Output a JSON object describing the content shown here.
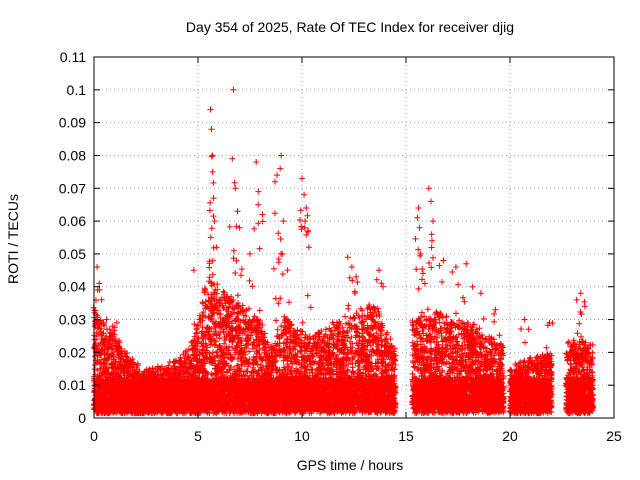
{
  "chart_data": {
    "type": "scatter",
    "title": "Day 354 of 2025, Rate Of TEC Index for receiver djig",
    "xlabel": "GPS time / hours",
    "ylabel": "ROTI / TECUs",
    "xlim": [
      0,
      25
    ],
    "ylim": [
      0,
      0.11
    ],
    "x_ticks": [
      "0",
      "5",
      "10",
      "15",
      "20",
      "25"
    ],
    "y_ticks": [
      "0",
      "0.01",
      "0.02",
      "0.03",
      "0.04",
      "0.05",
      "0.06",
      "0.07",
      "0.08",
      "0.09",
      "0.1",
      "0.11"
    ],
    "grid": true,
    "marker": "plus",
    "color": "#ff0000",
    "series": [
      {
        "name": "ROTI",
        "envelope": {
          "description": "upper envelope of dense point cloud (hour, ROTI)",
          "segments": [
            {
              "x_start": 0.0,
              "x_end": 2.2,
              "upper": [
                [
                  0.0,
                  0.035
                ],
                [
                  0.2,
                  0.03
                ],
                [
                  1.0,
                  0.025
                ],
                [
                  2.2,
                  0.015
                ]
              ]
            },
            {
              "x_start": 2.2,
              "x_end": 5.0,
              "upper": [
                [
                  2.2,
                  0.014
                ],
                [
                  3.5,
                  0.016
                ],
                [
                  4.5,
                  0.02
                ],
                [
                  5.0,
                  0.028
                ]
              ]
            },
            {
              "x_start": 5.0,
              "x_end": 8.5,
              "upper": [
                [
                  5.0,
                  0.03
                ],
                [
                  5.5,
                  0.045
                ],
                [
                  6.0,
                  0.04
                ],
                [
                  7.0,
                  0.035
                ],
                [
                  8.0,
                  0.03
                ],
                [
                  8.5,
                  0.02
                ]
              ]
            },
            {
              "x_start": 8.5,
              "x_end": 10.3,
              "upper": [
                [
                  8.5,
                  0.022
                ],
                [
                  9.2,
                  0.03
                ],
                [
                  10.3,
                  0.025
                ]
              ]
            },
            {
              "x_start": 10.3,
              "x_end": 14.5,
              "upper": [
                [
                  10.3,
                  0.025
                ],
                [
                  12.0,
                  0.03
                ],
                [
                  13.5,
                  0.035
                ],
                [
                  14.5,
                  0.02
                ]
              ]
            },
            {
              "x_start": 15.3,
              "x_end": 19.7,
              "upper": [
                [
                  15.3,
                  0.03
                ],
                [
                  16.5,
                  0.032
                ],
                [
                  18.0,
                  0.028
                ],
                [
                  19.7,
                  0.022
                ]
              ]
            },
            {
              "x_start": 20.0,
              "x_end": 22.0,
              "upper": [
                [
                  20.0,
                  0.015
                ],
                [
                  21.0,
                  0.018
                ],
                [
                  22.0,
                  0.02
                ]
              ]
            },
            {
              "x_start": 22.7,
              "x_end": 24.0,
              "upper": [
                [
                  22.7,
                  0.022
                ],
                [
                  23.3,
                  0.025
                ],
                [
                  24.0,
                  0.022
                ]
              ]
            }
          ],
          "floor": 0.004
        },
        "outliers": [
          [
            0.15,
            0.046
          ],
          [
            0.18,
            0.039
          ],
          [
            0.25,
            0.041
          ],
          [
            0.6,
            0.03
          ],
          [
            0.9,
            0.028
          ],
          [
            1.1,
            0.029
          ],
          [
            4.8,
            0.045
          ],
          [
            5.6,
            0.094
          ],
          [
            5.65,
            0.088
          ],
          [
            5.7,
            0.08
          ],
          [
            5.7,
            0.075
          ],
          [
            5.75,
            0.067
          ],
          [
            5.8,
            0.06
          ],
          [
            5.9,
            0.052
          ],
          [
            6.7,
            0.1
          ],
          [
            6.65,
            0.079
          ],
          [
            6.8,
            0.07
          ],
          [
            6.9,
            0.063
          ],
          [
            7.0,
            0.058
          ],
          [
            7.5,
            0.05
          ],
          [
            7.8,
            0.078
          ],
          [
            7.9,
            0.069
          ],
          [
            8.1,
            0.062
          ],
          [
            8.7,
            0.072
          ],
          [
            8.8,
            0.074
          ],
          [
            9.0,
            0.08
          ],
          [
            8.95,
            0.076
          ],
          [
            9.1,
            0.06
          ],
          [
            9.3,
            0.045
          ],
          [
            10.0,
            0.073
          ],
          [
            10.1,
            0.068
          ],
          [
            10.2,
            0.064
          ],
          [
            10.3,
            0.057
          ],
          [
            10.15,
            0.06
          ],
          [
            12.2,
            0.049
          ],
          [
            12.4,
            0.046
          ],
          [
            12.6,
            0.043
          ],
          [
            13.7,
            0.045
          ],
          [
            13.9,
            0.04
          ],
          [
            15.6,
            0.064
          ],
          [
            15.55,
            0.061
          ],
          [
            15.65,
            0.058
          ],
          [
            15.7,
            0.05
          ],
          [
            16.1,
            0.07
          ],
          [
            16.2,
            0.066
          ],
          [
            16.3,
            0.06
          ],
          [
            16.25,
            0.054
          ],
          [
            16.8,
            0.048
          ],
          [
            17.4,
            0.046
          ],
          [
            17.9,
            0.047
          ],
          [
            18.2,
            0.04
          ],
          [
            18.6,
            0.038
          ],
          [
            19.3,
            0.033
          ],
          [
            20.7,
            0.03
          ],
          [
            21.9,
            0.029
          ],
          [
            23.2,
            0.036
          ],
          [
            23.4,
            0.038
          ],
          [
            23.6,
            0.034
          ]
        ]
      }
    ]
  }
}
